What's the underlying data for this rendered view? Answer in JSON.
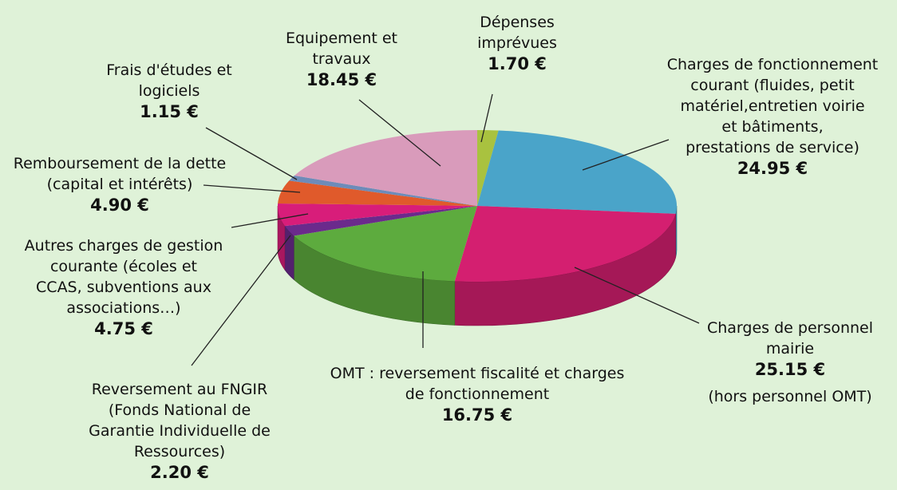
{
  "chart_data": {
    "type": "pie",
    "categories": [
      "Dépenses\nimprévues",
      "Charges de fonctionnement\ncourant (fluides, petit\nmatériel,entretien voirie\net bâtiments,\nprestations de service)",
      "Charges de personnel\nmairie",
      "OMT : reversement fiscalité et charges\nde fonctionnement",
      "Reversement au FNGIR\n(Fonds National de\nGarantie Individuelle de\nRessources)",
      "Autres charges de gestion\ncourante (écoles et\nCCAS, subventions aux\nassociations…)",
      "Remboursement de la dette\n(capital et intérêts)",
      "Frais d'études et\nlogiciels",
      "Equipement et\ntravaux"
    ],
    "values": [
      1.7,
      24.95,
      25.15,
      16.75,
      2.2,
      4.75,
      4.9,
      1.15,
      18.45
    ],
    "value_labels": [
      "1.70 €",
      "24.95 €",
      "25.15 €",
      "16.75 €",
      "2.20 €",
      "4.75 €",
      "4.90 €",
      "1.15 €",
      "18.45 €"
    ],
    "colors": [
      "#a9c23f",
      "#4aa4c9",
      "#d41f70",
      "#5dab3e",
      "#6b2a8c",
      "#d81d7a",
      "#e05a2b",
      "#6d8bb9",
      "#d99bbb"
    ],
    "annotations": [
      {
        "text": "(hors personnel OMT)"
      }
    ]
  }
}
